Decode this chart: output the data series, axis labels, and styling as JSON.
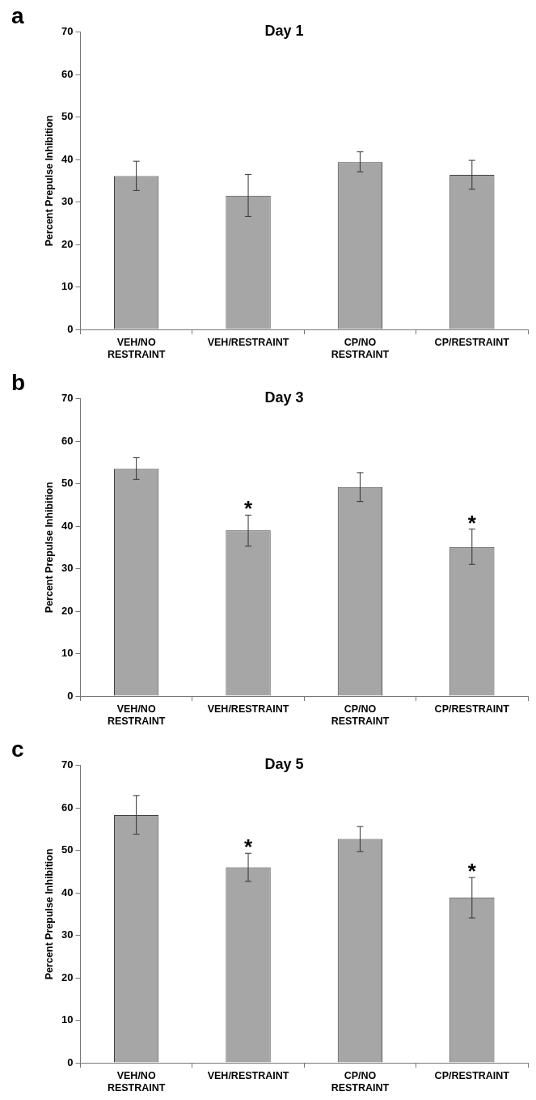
{
  "chart_data": [
    {
      "type": "bar",
      "title": "Day 1",
      "ylabel": "Percent Prepulse Inhibition",
      "categories": [
        "VEH/NO RESTRAINT",
        "VEH/RESTRAINT",
        "CP/NO RESTRAINT",
        "CP/RESTRAINT"
      ],
      "values": [
        36.1,
        31.5,
        39.4,
        36.4
      ],
      "errors": [
        [
          32.7,
          39.6
        ],
        [
          26.6,
          36.5
        ],
        [
          37.1,
          41.8
        ],
        [
          33.0,
          39.8
        ]
      ],
      "color": "#a6a6a6",
      "ylim": [
        0,
        70
      ],
      "yticks": [
        0,
        10,
        20,
        30,
        40,
        50,
        60,
        70
      ],
      "annotations": [
        "a"
      ]
    },
    {
      "type": "bar",
      "title": "Day 3",
      "ylabel": "Percent Prepulse Inhibition",
      "categories": [
        "VEH/NO RESTRAINT",
        "VEH/RESTRAINT",
        "CP/NO RESTRAINT",
        "CP/RESTRAINT"
      ],
      "values": [
        53.5,
        39.0,
        49.2,
        35.1
      ],
      "errors": [
        [
          51.0,
          56.1
        ],
        [
          35.3,
          42.6
        ],
        [
          45.8,
          52.6
        ],
        [
          31.0,
          39.3
        ]
      ],
      "color": "#a6a6a6",
      "ylim": [
        0,
        70
      ],
      "yticks": [
        0,
        10,
        20,
        30,
        40,
        50,
        60,
        70
      ],
      "annotations": [
        "b",
        {
          "text": "*",
          "x": "VEH/RESTRAINT",
          "y": 42.6
        },
        {
          "text": "*",
          "x": "CP/RESTRAINT",
          "y": 39.3
        }
      ]
    },
    {
      "type": "bar",
      "title": "Day 5",
      "ylabel": "Percent Prepulse Inhibition",
      "categories": [
        "VEH/NO RESTRAINT",
        "VEH/RESTRAINT",
        "CP/NO RESTRAINT",
        "CP/RESTRAINT"
      ],
      "values": [
        58.3,
        46.0,
        52.7,
        38.9
      ],
      "errors": [
        [
          53.8,
          62.9
        ],
        [
          42.7,
          49.3
        ],
        [
          49.7,
          55.6
        ],
        [
          34.1,
          43.6
        ]
      ],
      "color": "#a6a6a6",
      "ylim": [
        0,
        70
      ],
      "yticks": [
        0,
        10,
        20,
        30,
        40,
        50,
        60,
        70
      ],
      "annotations": [
        "c",
        {
          "text": "*",
          "x": "VEH/RESTRAINT",
          "y": 49.3
        },
        {
          "text": "*",
          "x": "CP/RESTRAINT",
          "y": 43.6
        }
      ]
    }
  ]
}
